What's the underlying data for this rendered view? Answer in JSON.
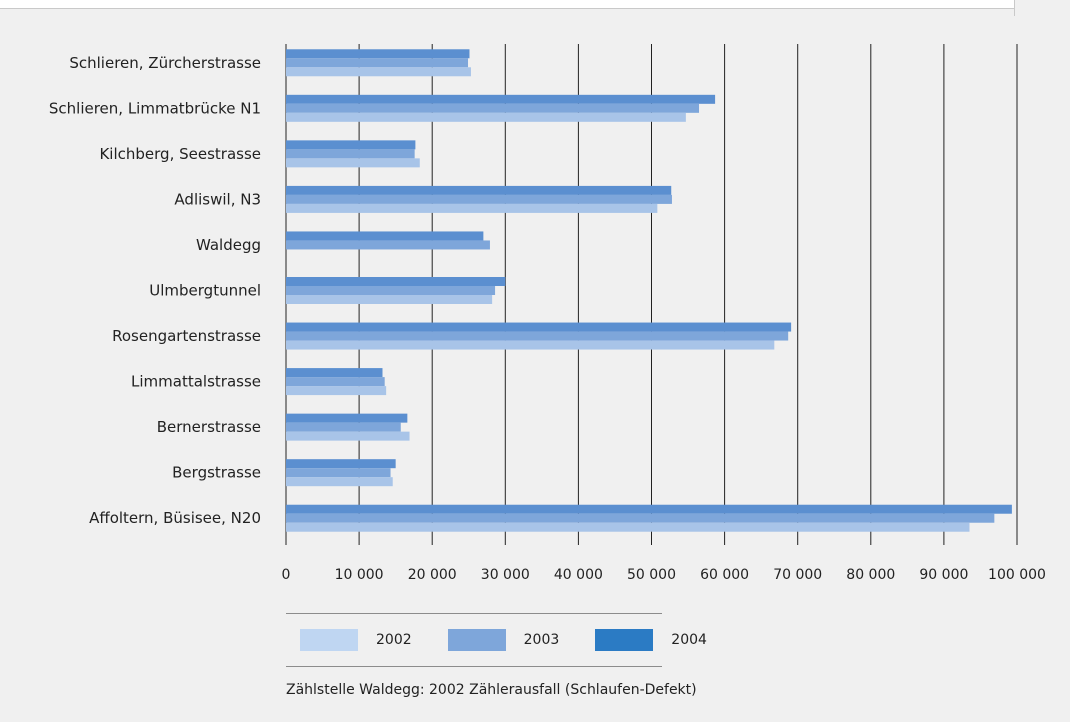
{
  "chart_data": {
    "type": "bar",
    "orientation": "horizontal",
    "categories": [
      "Schlieren, Zürcherstrasse",
      "Schlieren, Limmatbrücke N1",
      "Kilchberg, Seestrasse",
      "Adliswil, N3",
      "Waldegg",
      "Ulmbergtunnel",
      "Rosengartenstrasse",
      "Limmattalstrasse",
      "Bernerstrasse",
      "Bergstrasse",
      "Affoltern, Büsisee, N20"
    ],
    "series": [
      {
        "name": "2002",
        "color": "#a8c4e8",
        "values": [
          25300,
          54700,
          18300,
          50800,
          null,
          28200,
          66800,
          13700,
          16900,
          14600,
          93500
        ]
      },
      {
        "name": "2003",
        "color": "#7ea6da",
        "values": [
          24900,
          56500,
          17600,
          52800,
          27900,
          28600,
          68700,
          13500,
          15700,
          14300,
          96900
        ]
      },
      {
        "name": "2004",
        "color": "#5b8fd0",
        "values": [
          25100,
          58700,
          17700,
          52700,
          27000,
          30000,
          69100,
          13200,
          16600,
          15000,
          99300
        ]
      }
    ],
    "x_ticks": [
      "0",
      "10 000",
      "20 000",
      "30 000",
      "40 000",
      "50 000",
      "60 000",
      "70 000",
      "80 000",
      "90 000",
      "100 000"
    ],
    "xlim": [
      0,
      100000
    ],
    "grid": "vertical",
    "legend_position": "bottom"
  },
  "legend": [
    {
      "label": "2002",
      "color": "#bfd6f2"
    },
    {
      "label": "2003",
      "color": "#7ea6da"
    },
    {
      "label": "2004",
      "color": "#2b7bc4"
    }
  ],
  "footnote": "Zählstelle Waldegg: 2002 Zählerausfall (Schlaufen-Defekt)"
}
